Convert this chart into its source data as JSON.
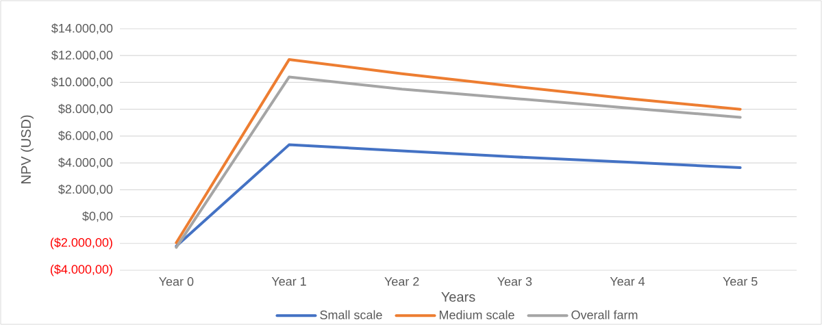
{
  "chart_data": {
    "type": "line",
    "xlabel": "Years",
    "ylabel": "NPV (USD)",
    "categories": [
      "Year 0",
      "Year 1",
      "Year 2",
      "Year 3",
      "Year 4",
      "Year 5"
    ],
    "series": [
      {
        "name": "Small scale",
        "color": "#4472c4",
        "values": [
          -2200,
          5350,
          4900,
          4450,
          4050,
          3650
        ]
      },
      {
        "name": "Medium scale",
        "color": "#ed7d31",
        "values": [
          -1950,
          11700,
          10650,
          9700,
          8800,
          8000
        ]
      },
      {
        "name": "Overall farm",
        "color": "#a5a5a5",
        "values": [
          -2300,
          10400,
          9500,
          8800,
          8100,
          7400
        ]
      }
    ],
    "ylim": [
      -4000,
      14000
    ],
    "yticks": [
      {
        "value": -4000,
        "label": "($4.000,00)"
      },
      {
        "value": -2000,
        "label": "($2.000,00)"
      },
      {
        "value": 0,
        "label": "$0,00"
      },
      {
        "value": 2000,
        "label": "$2.000,00"
      },
      {
        "value": 4000,
        "label": "$4.000,00"
      },
      {
        "value": 6000,
        "label": "$6.000,00"
      },
      {
        "value": 8000,
        "label": "$8.000,00"
      },
      {
        "value": 10000,
        "label": "$10.000,00"
      },
      {
        "value": 12000,
        "label": "$12.000,00"
      },
      {
        "value": 14000,
        "label": "$14.000,00"
      }
    ],
    "grid": "y",
    "legend": "bottom",
    "marker": "none",
    "line_style": "solid"
  }
}
